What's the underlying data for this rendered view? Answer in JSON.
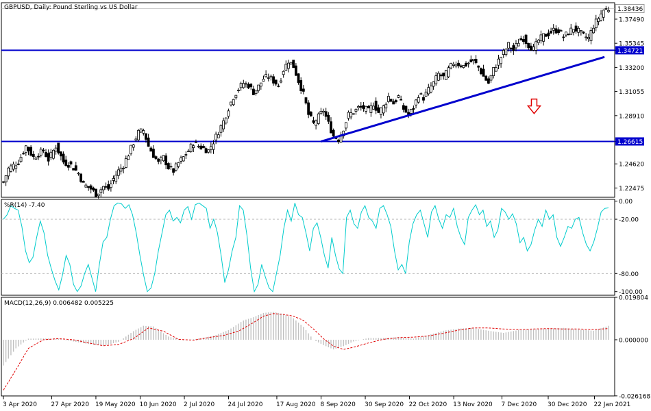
{
  "chart_data": [
    {
      "type": "candlestick",
      "title": "GBPUSD, Daily:  Pound Sterling vs US Dollar",
      "y_ticks": [
        "1.38436",
        "1.37490",
        "1.35345",
        "1.34721",
        "1.33200",
        "1.31055",
        "1.28910",
        "1.26615",
        "1.24620",
        "1.22475"
      ],
      "ylim": [
        1.2165,
        1.3895
      ],
      "current_price": "1.38436",
      "horizontal_levels": [
        {
          "value": 1.34721,
          "label": "1.34721",
          "color": "#0000cd"
        },
        {
          "value": 1.26615,
          "label": "1.26615",
          "color": "#0000cd"
        }
      ],
      "trendline": {
        "from": {
          "date": "2020-09-08",
          "value": 1.2661
        },
        "to": {
          "date": "2021-01-27",
          "value": 1.3413
        },
        "color": "#0000cd"
      },
      "arrow": {
        "direction": "down",
        "date": "2020-12-23",
        "value": 1.2965,
        "color": "#e00000"
      },
      "colors": {
        "bull": "#000000",
        "bear": "#000000",
        "bull_body": "#ffffff",
        "bear_body": "#000000"
      },
      "x_ticks": [
        "3 Apr 2020",
        "27 Apr 2020",
        "19 May 2020",
        "10 Jun 2020",
        "2 Jul 2020",
        "24 Jul 2020",
        "17 Aug 2020",
        "8 Sep 2020",
        "30 Sep 2020",
        "22 Oct 2020",
        "13 Nov 2020",
        "7 Dec 2020",
        "30 Dec 2020",
        "22 Jan 2021"
      ],
      "close_anchors": [
        [
          0,
          1.23
        ],
        [
          2,
          1.242
        ],
        [
          6,
          1.248
        ],
        [
          9,
          1.262
        ],
        [
          12,
          1.252
        ],
        [
          16,
          1.258
        ],
        [
          18,
          1.25
        ],
        [
          21,
          1.262
        ],
        [
          24,
          1.248
        ],
        [
          27,
          1.245
        ],
        [
          30,
          1.238
        ],
        [
          32,
          1.228
        ],
        [
          35,
          1.224
        ],
        [
          37,
          1.219
        ],
        [
          40,
          1.226
        ],
        [
          42,
          1.224
        ],
        [
          44,
          1.233
        ],
        [
          46,
          1.24
        ],
        [
          48,
          1.245
        ],
        [
          50,
          1.255
        ],
        [
          52,
          1.265
        ],
        [
          54,
          1.274
        ],
        [
          56,
          1.276
        ],
        [
          58,
          1.262
        ],
        [
          60,
          1.254
        ],
        [
          62,
          1.247
        ],
        [
          64,
          1.252
        ],
        [
          66,
          1.243
        ],
        [
          68,
          1.24
        ],
        [
          70,
          1.247
        ],
        [
          72,
          1.252
        ],
        [
          74,
          1.258
        ],
        [
          76,
          1.265
        ],
        [
          78,
          1.262
        ],
        [
          80,
          1.26
        ],
        [
          82,
          1.258
        ],
        [
          84,
          1.266
        ],
        [
          86,
          1.275
        ],
        [
          88,
          1.284
        ],
        [
          90,
          1.296
        ],
        [
          92,
          1.306
        ],
        [
          94,
          1.313
        ],
        [
          96,
          1.318
        ],
        [
          98,
          1.316
        ],
        [
          100,
          1.31
        ],
        [
          102,
          1.315
        ],
        [
          104,
          1.322
        ],
        [
          106,
          1.324
        ],
        [
          108,
          1.32
        ],
        [
          110,
          1.316
        ],
        [
          112,
          1.33
        ],
        [
          114,
          1.338
        ],
        [
          116,
          1.333
        ],
        [
          118,
          1.32
        ],
        [
          120,
          1.308
        ],
        [
          122,
          1.29
        ],
        [
          124,
          1.282
        ],
        [
          126,
          1.288
        ],
        [
          128,
          1.294
        ],
        [
          130,
          1.282
        ],
        [
          132,
          1.271
        ],
        [
          134,
          1.268
        ],
        [
          136,
          1.278
        ],
        [
          138,
          1.29
        ],
        [
          140,
          1.292
        ],
        [
          142,
          1.296
        ],
        [
          144,
          1.296
        ],
        [
          146,
          1.293
        ],
        [
          148,
          1.3
        ],
        [
          150,
          1.292
        ],
        [
          152,
          1.297
        ],
        [
          154,
          1.306
        ],
        [
          156,
          1.3
        ],
        [
          158,
          1.306
        ],
        [
          160,
          1.295
        ],
        [
          162,
          1.29
        ],
        [
          164,
          1.296
        ],
        [
          166,
          1.308
        ],
        [
          168,
          1.305
        ],
        [
          170,
          1.312
        ],
        [
          172,
          1.318
        ],
        [
          174,
          1.326
        ],
        [
          176,
          1.323
        ],
        [
          178,
          1.33
        ],
        [
          180,
          1.336
        ],
        [
          182,
          1.335
        ],
        [
          184,
          1.333
        ],
        [
          186,
          1.336
        ],
        [
          188,
          1.338
        ],
        [
          190,
          1.332
        ],
        [
          192,
          1.324
        ],
        [
          194,
          1.318
        ],
        [
          196,
          1.33
        ],
        [
          198,
          1.338
        ],
        [
          200,
          1.345
        ],
        [
          202,
          1.352
        ],
        [
          204,
          1.347
        ],
        [
          206,
          1.355
        ],
        [
          208,
          1.358
        ],
        [
          210,
          1.352
        ],
        [
          212,
          1.348
        ],
        [
          214,
          1.356
        ],
        [
          216,
          1.36
        ],
        [
          218,
          1.362
        ],
        [
          220,
          1.365
        ],
        [
          222,
          1.365
        ],
        [
          224,
          1.359
        ],
        [
          226,
          1.363
        ],
        [
          228,
          1.367
        ],
        [
          230,
          1.364
        ],
        [
          232,
          1.36
        ],
        [
          234,
          1.358
        ],
        [
          236,
          1.369
        ],
        [
          238,
          1.376
        ],
        [
          240,
          1.383
        ],
        [
          242,
          1.384
        ]
      ],
      "date_range": [
        "2020-04-03",
        "2021-01-29"
      ]
    },
    {
      "type": "line",
      "title": "%R(14) -7.40",
      "y_ticks": [
        "0.00",
        "-20.00",
        "-80.00",
        "-100.00"
      ],
      "ylim": [
        -104,
        2
      ],
      "levels": [
        -20,
        -80
      ],
      "color": "#00cccc",
      "series": [
        {
          "values": [
            -20,
            -15,
            -5,
            -8,
            -10,
            -28,
            -55,
            -68,
            -62,
            -40,
            -22,
            -35,
            -60,
            -75,
            -88,
            -98,
            -82,
            -60,
            -70,
            -92,
            -100,
            -94,
            -80,
            -70,
            -85,
            -100,
            -70,
            -45,
            -40,
            -20,
            -5,
            -2,
            -3,
            -8,
            -4,
            -15,
            -35,
            -60,
            -82,
            -100,
            -96,
            -80,
            -55,
            -35,
            -15,
            -10,
            -22,
            -18,
            -24,
            -10,
            -6,
            -20,
            -4,
            -2,
            -5,
            -8,
            -30,
            -20,
            -35,
            -60,
            -90,
            -76,
            -55,
            -40,
            -5,
            -10,
            -38,
            -74,
            -100,
            -92,
            -70,
            -84,
            -96,
            -100,
            -80,
            -60,
            -30,
            -10,
            -22,
            -2,
            -15,
            -18,
            -35,
            -55,
            -30,
            -24,
            -40,
            -60,
            -74,
            -40,
            -60,
            -75,
            -80,
            -18,
            -10,
            -25,
            -30,
            -12,
            -5,
            -18,
            -22,
            -30,
            -8,
            -5,
            -15,
            -28,
            -55,
            -76,
            -70,
            -80,
            -45,
            -25,
            -15,
            -10,
            -25,
            -40,
            -12,
            -5,
            -20,
            -30,
            -15,
            -18,
            -8,
            -28,
            -40,
            -48,
            -18,
            -10,
            -4,
            -15,
            -10,
            -28,
            -22,
            -40,
            -32,
            -8,
            -12,
            -20,
            -14,
            -25,
            -46,
            -40,
            -55,
            -48,
            -32,
            -20,
            -28,
            -10,
            -20,
            -15,
            -40,
            -50,
            -40,
            -28,
            -30,
            -20,
            -18,
            -35,
            -48,
            -55,
            -45,
            -30,
            -12,
            -8,
            -7.4
          ]
        }
      ]
    },
    {
      "type": "histogram+line",
      "title": "MACD(12,26,9) 0.006482 0.005225",
      "y_ticks": [
        "0.019804",
        "0.000000",
        "-0.026168"
      ],
      "ylim": [
        -0.0262,
        0.0198
      ],
      "histogram_color": "#c0c0c0",
      "signal_color": "#e00000",
      "main_anchors": [
        [
          0,
          -0.012
        ],
        [
          5,
          -0.004
        ],
        [
          10,
          0.0005
        ],
        [
          16,
          0.0006
        ],
        [
          22,
          0.0005
        ],
        [
          28,
          -0.0008
        ],
        [
          34,
          -0.002
        ],
        [
          40,
          -0.0028
        ],
        [
          46,
          -0.001
        ],
        [
          52,
          0.004
        ],
        [
          56,
          0.0065
        ],
        [
          60,
          0.0062
        ],
        [
          66,
          0.0015
        ],
        [
          72,
          -0.0003
        ],
        [
          78,
          0.0005
        ],
        [
          84,
          0.0018
        ],
        [
          90,
          0.0045
        ],
        [
          96,
          0.009
        ],
        [
          100,
          0.0105
        ],
        [
          104,
          0.0125
        ],
        [
          108,
          0.013
        ],
        [
          112,
          0.012
        ],
        [
          116,
          0.01
        ],
        [
          120,
          0.006
        ],
        [
          124,
          0.0
        ],
        [
          128,
          -0.0025
        ],
        [
          132,
          -0.0045
        ],
        [
          136,
          -0.003
        ],
        [
          140,
          -0.0008
        ],
        [
          146,
          0.0008
        ],
        [
          152,
          0.0008
        ],
        [
          158,
          0.0012
        ],
        [
          164,
          0.0005
        ],
        [
          170,
          0.0022
        ],
        [
          176,
          0.0042
        ],
        [
          182,
          0.0052
        ],
        [
          188,
          0.0055
        ],
        [
          194,
          0.0042
        ],
        [
          200,
          0.0032
        ],
        [
          206,
          0.0045
        ],
        [
          212,
          0.0048
        ],
        [
          218,
          0.0052
        ],
        [
          224,
          0.0055
        ],
        [
          230,
          0.0048
        ],
        [
          236,
          0.0042
        ],
        [
          242,
          0.0065
        ]
      ],
      "signal_anchors": [
        [
          0,
          -0.0235
        ],
        [
          5,
          -0.014
        ],
        [
          10,
          -0.004
        ],
        [
          16,
          0.0
        ],
        [
          22,
          0.0005
        ],
        [
          28,
          0.0
        ],
        [
          34,
          -0.0015
        ],
        [
          40,
          -0.0028
        ],
        [
          46,
          -0.0022
        ],
        [
          52,
          0.0005
        ],
        [
          58,
          0.0055
        ],
        [
          64,
          0.004
        ],
        [
          70,
          0.0002
        ],
        [
          76,
          -0.0002
        ],
        [
          82,
          0.001
        ],
        [
          88,
          0.002
        ],
        [
          94,
          0.004
        ],
        [
          100,
          0.008
        ],
        [
          104,
          0.011
        ],
        [
          108,
          0.0122
        ],
        [
          112,
          0.0118
        ],
        [
          116,
          0.011
        ],
        [
          120,
          0.009
        ],
        [
          124,
          0.005
        ],
        [
          128,
          0.0005
        ],
        [
          132,
          -0.003
        ],
        [
          136,
          -0.0045
        ],
        [
          140,
          -0.0035
        ],
        [
          146,
          -0.0015
        ],
        [
          152,
          0.0002
        ],
        [
          158,
          0.001
        ],
        [
          164,
          0.0012
        ],
        [
          170,
          0.0018
        ],
        [
          176,
          0.003
        ],
        [
          182,
          0.0045
        ],
        [
          188,
          0.0055
        ],
        [
          194,
          0.0055
        ],
        [
          200,
          0.005
        ],
        [
          206,
          0.0048
        ],
        [
          212,
          0.005
        ],
        [
          218,
          0.0052
        ],
        [
          224,
          0.005
        ],
        [
          230,
          0.005
        ],
        [
          236,
          0.0048
        ],
        [
          242,
          0.0052
        ]
      ]
    }
  ]
}
